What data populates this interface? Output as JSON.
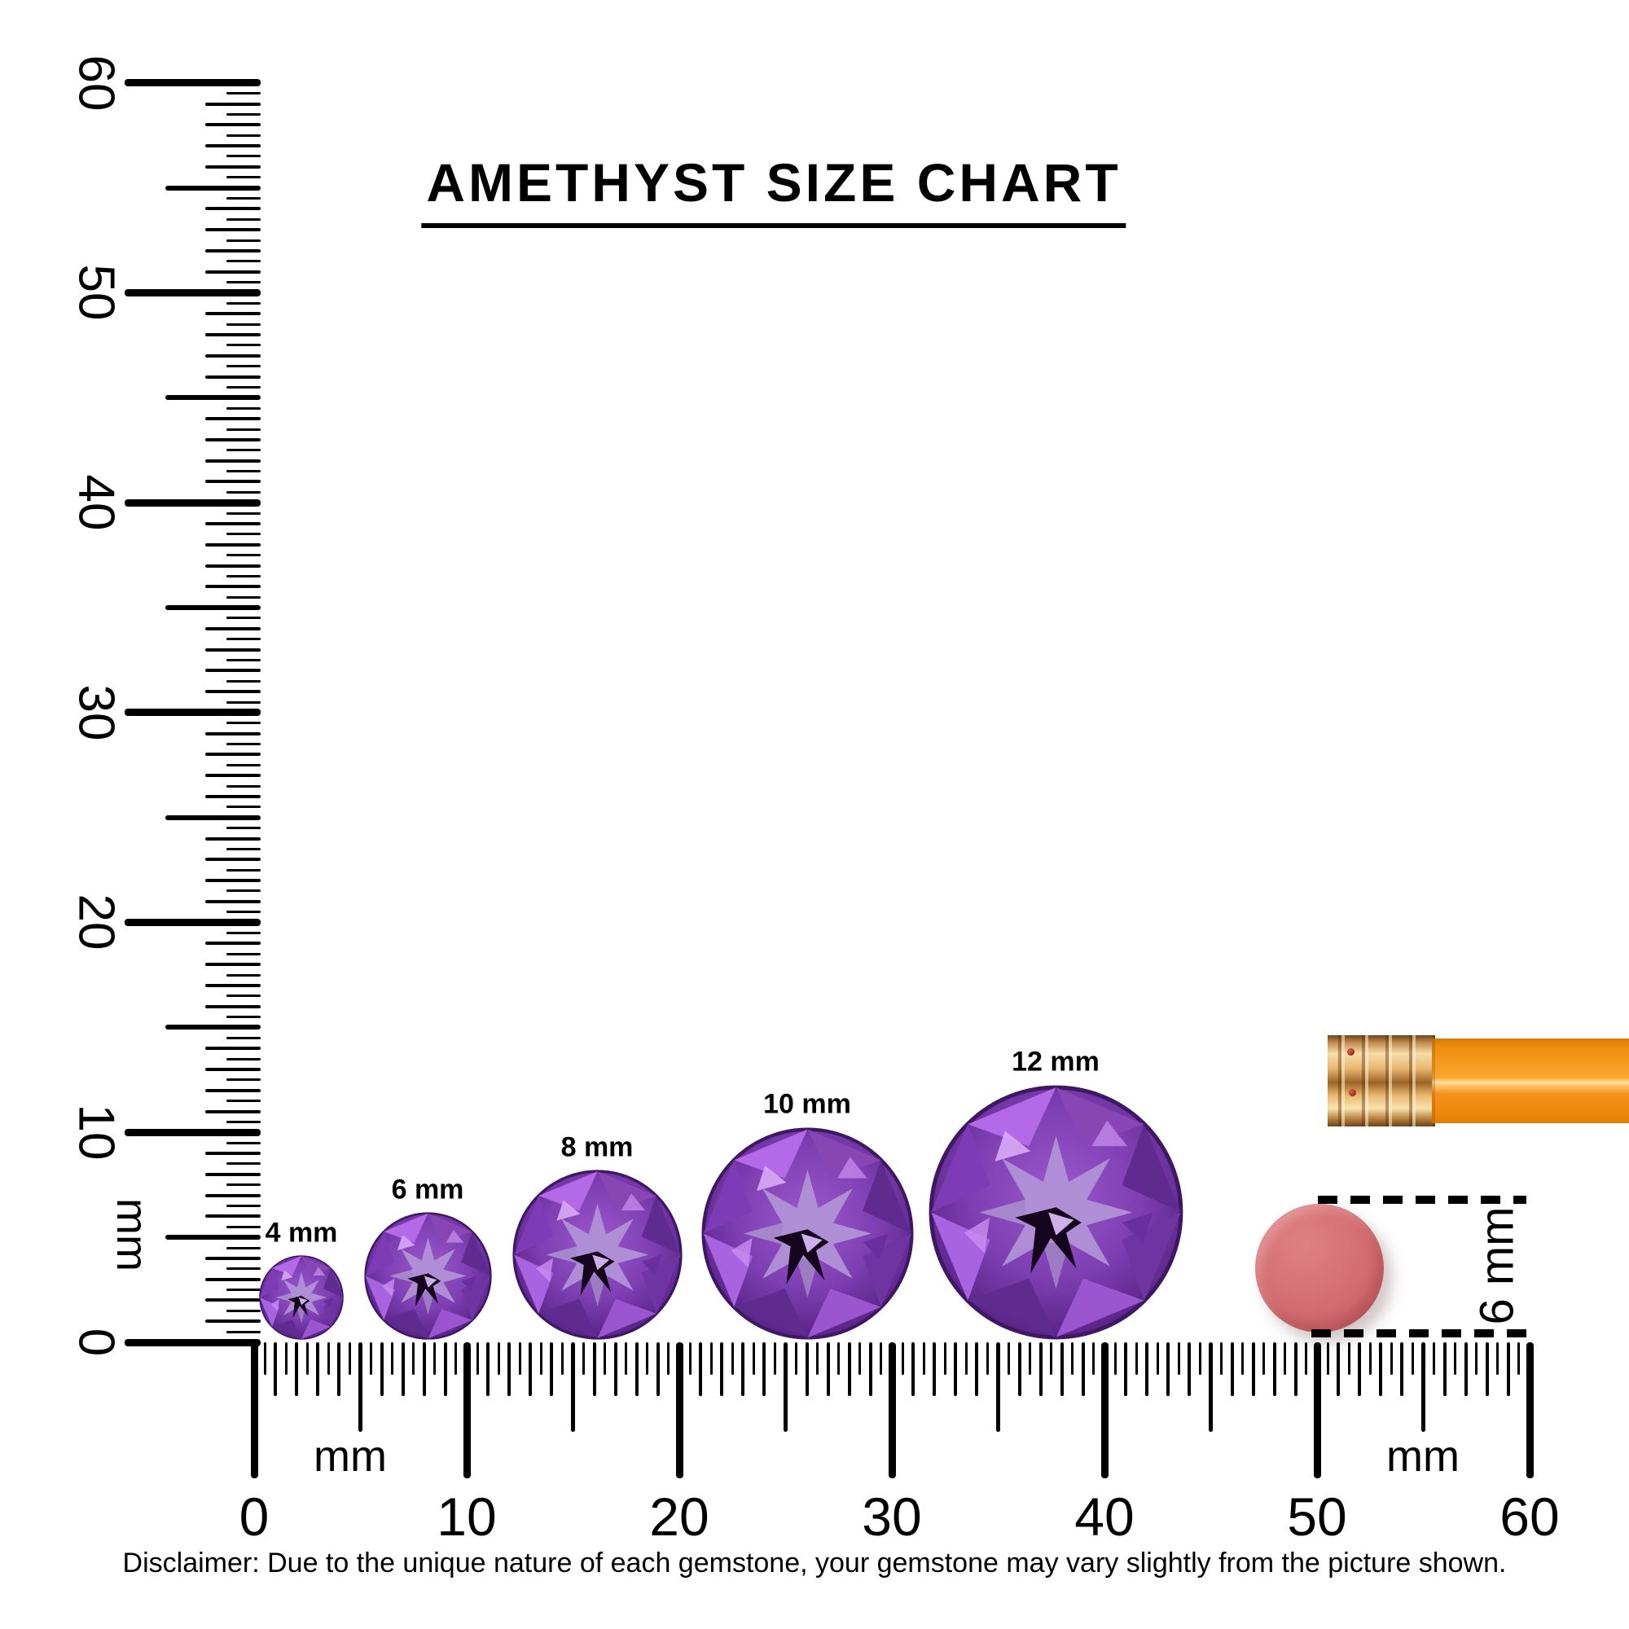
{
  "title": "AMETHYST SIZE CHART",
  "disclaimer": "Disclaimer: Due to the unique nature of each gemstone, your gemstone may vary slightly from the picture shown.",
  "gems": [
    {
      "label": "4 mm",
      "size_mm": 4
    },
    {
      "label": "6 mm",
      "size_mm": 6
    },
    {
      "label": "8 mm",
      "size_mm": 8
    },
    {
      "label": "10 mm",
      "size_mm": 10
    },
    {
      "label": "12 mm",
      "size_mm": 12
    }
  ],
  "left_ruler": {
    "unit": "mm",
    "range_mm": [
      0,
      60
    ],
    "numbers": [
      "60",
      "50",
      "40",
      "30",
      "20",
      "10",
      "0"
    ]
  },
  "bottom_ruler": {
    "unit_left": "mm",
    "unit_right": "mm",
    "range_mm": [
      0,
      60
    ],
    "numbers": [
      "0",
      "10",
      "20",
      "30",
      "40",
      "50",
      "60"
    ]
  },
  "eraser_measurement": {
    "label": "6 mm"
  },
  "objects": {
    "pencil": "pencil with eraser and ferrule",
    "round_eraser": "6 mm round eraser dot"
  },
  "colors": {
    "ink": "#000000",
    "gem_primary": "#7d3fb2",
    "gem_dark": "#531f80",
    "gem_star": "#b191d6",
    "pencil_body": "#f49018",
    "pencil_ferrule": "#e9b872",
    "pencil_eraser": "#d4737d",
    "round_eraser": "#d06a6e"
  }
}
